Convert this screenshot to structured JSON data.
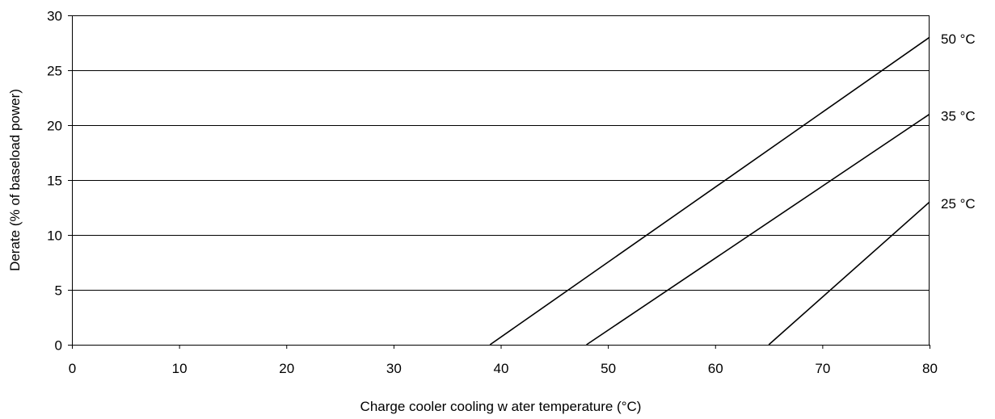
{
  "chart_data": {
    "type": "line",
    "title": "",
    "xlabel": "Charge cooler cooling w ater temperature (°C)",
    "ylabel": "Derate (% of baseload power)",
    "xlim": [
      0,
      80
    ],
    "ylim": [
      0,
      30
    ],
    "xticks": [
      0,
      10,
      20,
      30,
      40,
      50,
      60,
      70,
      80
    ],
    "yticks": [
      0,
      5,
      10,
      15,
      20,
      25,
      30
    ],
    "grid": "horizontal",
    "legend": "none",
    "series": [
      {
        "name": "50 °C",
        "x": [
          39,
          80
        ],
        "y": [
          0,
          28
        ]
      },
      {
        "name": "35 °C",
        "x": [
          48,
          80
        ],
        "y": [
          0,
          21
        ]
      },
      {
        "name": "25 °C",
        "x": [
          65,
          80
        ],
        "y": [
          0,
          13
        ]
      }
    ],
    "colors": {
      "line": "#000000",
      "grid": "#000000",
      "background": "#ffffff"
    }
  }
}
